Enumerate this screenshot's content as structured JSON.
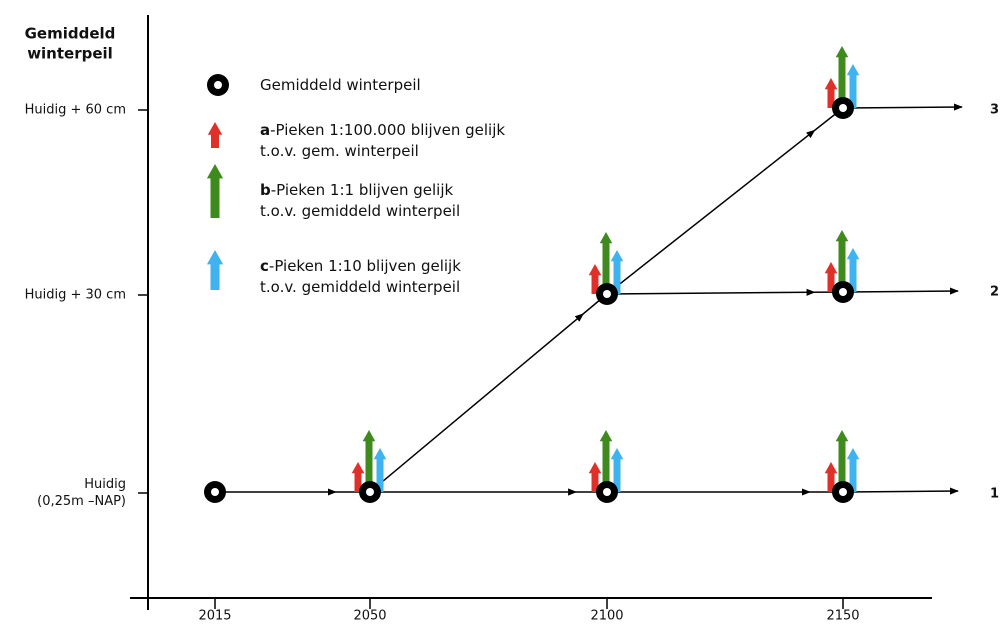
{
  "y_axis": {
    "title": [
      "Gemiddeld",
      "winterpeil"
    ],
    "labels": [
      [
        "Huidig + 60 cm"
      ],
      [
        "Huidig + 30 cm"
      ],
      [
        "Huidig",
        "(0,25m –NAP)"
      ]
    ]
  },
  "x_axis": {
    "labels": [
      "2015",
      "2050",
      "2100",
      "2150"
    ]
  },
  "legend": [
    {
      "letter": null,
      "lines": [
        "Gemiddeld winterpeil"
      ]
    },
    {
      "letter": "a",
      "lines": [
        "-Pieken 1:100.000 blijven gelijk",
        "t.o.v. gem. winterpeil"
      ]
    },
    {
      "letter": "b",
      "lines": [
        "-Pieken 1:1 blijven gelijk",
        "t.o.v. gemiddeld winterpeil"
      ]
    },
    {
      "letter": "c",
      "lines": [
        "-Pieken 1:10 blijven gelijk",
        "t.o.v. gemiddeld winterpeil"
      ]
    }
  ],
  "scenarios": [
    "3",
    "2",
    "1"
  ]
}
